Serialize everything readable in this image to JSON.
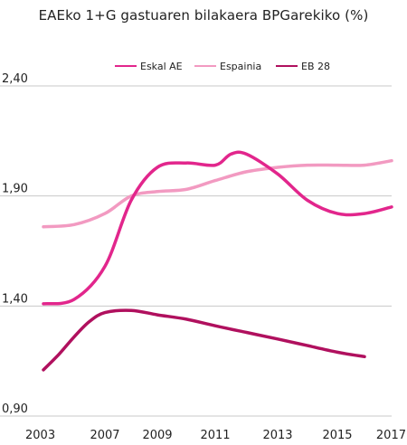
{
  "chart_data": {
    "type": "line",
    "title": "EAEko 1+G gastuaren bilakaera BPGarekiko (%)",
    "xlabel": "",
    "ylabel": "",
    "x_ticks": [
      "2003",
      "2007",
      "2009",
      "2011",
      "2013",
      "2015",
      "2017"
    ],
    "y_ticks": [
      "0,90",
      "1,40",
      "1,90",
      "2,40"
    ],
    "ylim": [
      0.9,
      2.4
    ],
    "grid": "horizontal",
    "legend_position": "top",
    "series": [
      {
        "name": "Eskal AE",
        "color": "#e2268c",
        "x": [
          2003,
          2005,
          2007,
          2008,
          2009,
          2010,
          2011,
          2011.5,
          2012,
          2013,
          2014,
          2015,
          2016,
          2017
        ],
        "y": [
          1.41,
          1.43,
          1.58,
          1.88,
          2.03,
          2.05,
          2.04,
          2.09,
          2.09,
          2.0,
          1.88,
          1.82,
          1.82,
          1.85
        ]
      },
      {
        "name": "Espainia",
        "color": "#f29ac1",
        "x": [
          2003,
          2005,
          2007,
          2008,
          2009,
          2010,
          2011,
          2012,
          2013,
          2014,
          2015,
          2016,
          2017
        ],
        "y": [
          1.76,
          1.77,
          1.82,
          1.9,
          1.92,
          1.93,
          1.97,
          2.01,
          2.03,
          2.04,
          2.04,
          2.04,
          2.06
        ]
      },
      {
        "name": "EB 28",
        "color": "#b0105e",
        "x": [
          2003,
          2004,
          2005,
          2006,
          2007,
          2008,
          2009,
          2010,
          2011,
          2012,
          2013,
          2014,
          2015,
          2016
        ],
        "y": [
          1.11,
          1.18,
          1.26,
          1.33,
          1.37,
          1.38,
          1.36,
          1.34,
          1.31,
          1.28,
          1.25,
          1.22,
          1.19,
          1.17
        ]
      }
    ]
  }
}
